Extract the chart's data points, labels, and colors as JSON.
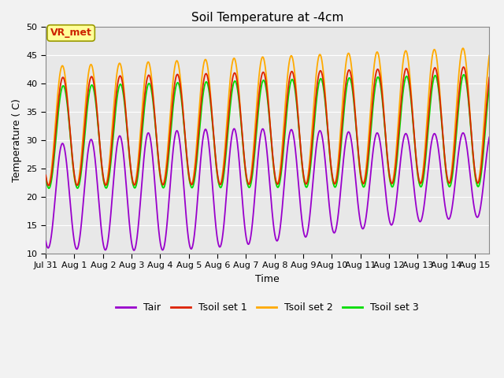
{
  "title": "Soil Temperature at -4cm",
  "xlabel": "Time",
  "ylabel": "Temperature ( C)",
  "xlim_days": [
    0,
    15.5
  ],
  "ylim": [
    10,
    50
  ],
  "yticks": [
    10,
    15,
    20,
    25,
    30,
    35,
    40,
    45,
    50
  ],
  "xtick_labels": [
    "Jul 31",
    "Aug 1",
    "Aug 2",
    "Aug 3",
    "Aug 4",
    "Aug 5",
    "Aug 6",
    "Aug 7",
    "Aug 8",
    "Aug 9",
    "Aug 10",
    "Aug 11",
    "Aug 12",
    "Aug 13",
    "Aug 14",
    "Aug 15"
  ],
  "xtick_positions": [
    0,
    1,
    2,
    3,
    4,
    5,
    6,
    7,
    8,
    9,
    10,
    11,
    12,
    13,
    14,
    15
  ],
  "colors": {
    "Tair": "#9900cc",
    "Tsoil1": "#dd2200",
    "Tsoil2": "#ffaa00",
    "Tsoil3": "#00dd00"
  },
  "legend_labels": [
    "Tair",
    "Tsoil set 1",
    "Tsoil set 2",
    "Tsoil set 3"
  ],
  "annotation_text": "VR_met",
  "annotation_color": "#cc2200",
  "annotation_bg": "#ffff99",
  "background_color": "#e8e8e8",
  "title_fontsize": 11,
  "axis_label_fontsize": 9,
  "tick_fontsize": 8,
  "legend_fontsize": 9
}
